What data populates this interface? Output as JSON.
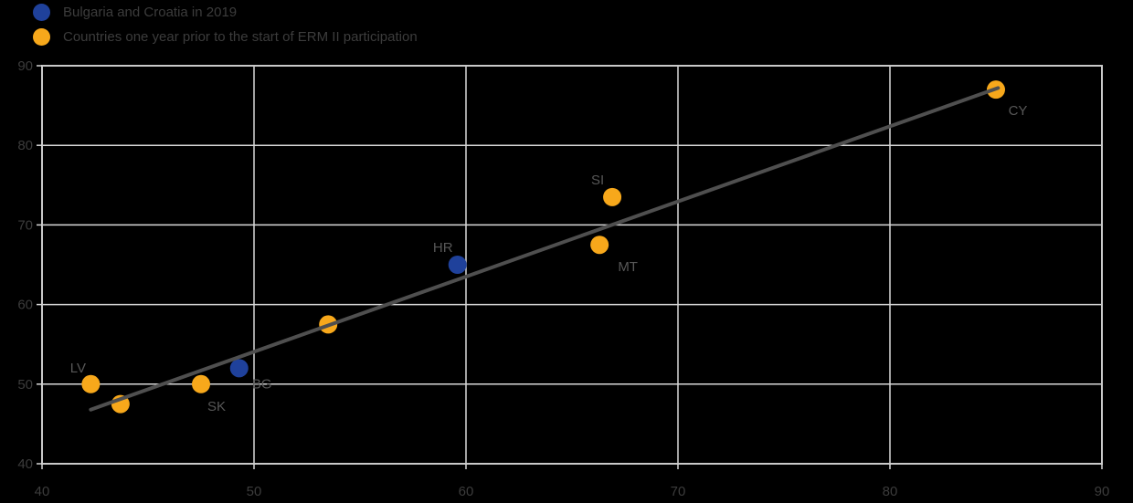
{
  "colors": {
    "background": "#000000",
    "blue_series": "#1F419B",
    "yellow_series": "#F7A81B",
    "gridline": "#D9D9D9",
    "plot_border": "#C9C9C9",
    "tick_mark": "#D9D9D9",
    "axis_text": "#3C3C3C",
    "point_label_text": "#575757",
    "trendline": "#4F4F4F"
  },
  "legend": {
    "items": [
      {
        "label": "Bulgaria and Croatia in 2019",
        "color": "#1F419B",
        "series": "blue"
      },
      {
        "label": "Countries one year prior to the start of ERM II participation",
        "color": "#F7A81B",
        "series": "yellow"
      }
    ]
  },
  "chart_data": {
    "type": "scatter",
    "title": "",
    "xlabel": "",
    "ylabel": "",
    "xlim": [
      40,
      90
    ],
    "ylim": [
      40,
      90
    ],
    "xticks": [
      40,
      50,
      60,
      70,
      80,
      90
    ],
    "yticks": [
      40,
      50,
      60,
      70,
      80,
      90
    ],
    "grid": true,
    "legend_position": "top-left",
    "series": [
      {
        "name": "Bulgaria and Croatia in 2019",
        "color": "#1F419B",
        "points": [
          {
            "label": "BG",
            "x": 49.3,
            "y": 52.0,
            "label_offset": [
              25,
              22
            ]
          },
          {
            "label": "HR",
            "x": 59.6,
            "y": 65.0,
            "label_offset": [
              -16,
              -14
            ]
          }
        ]
      },
      {
        "name": "Countries one year prior to the start of ERM II participation",
        "color": "#F7A81B",
        "points": [
          {
            "label": "LV",
            "x": 42.3,
            "y": 50.0,
            "label_offset": [
              -14,
              -13
            ]
          },
          {
            "label": "",
            "x": 43.7,
            "y": 47.5,
            "label_offset": [
              0,
              0
            ]
          },
          {
            "label": "SK",
            "x": 47.5,
            "y": 50.0,
            "label_offset": [
              17,
              29
            ]
          },
          {
            "label": "",
            "x": 53.5,
            "y": 57.5,
            "label_offset": [
              0,
              0
            ]
          },
          {
            "label": "MT",
            "x": 66.3,
            "y": 67.5,
            "label_offset": [
              31,
              29
            ]
          },
          {
            "label": "SI",
            "x": 66.9,
            "y": 73.5,
            "label_offset": [
              -16,
              -14
            ]
          },
          {
            "label": "CY",
            "x": 85.0,
            "y": 87.0,
            "label_offset": [
              24,
              28
            ]
          }
        ]
      }
    ],
    "trendline": {
      "x1": 42.3,
      "y1": 46.8,
      "x2": 85.1,
      "y2": 87.2
    }
  }
}
